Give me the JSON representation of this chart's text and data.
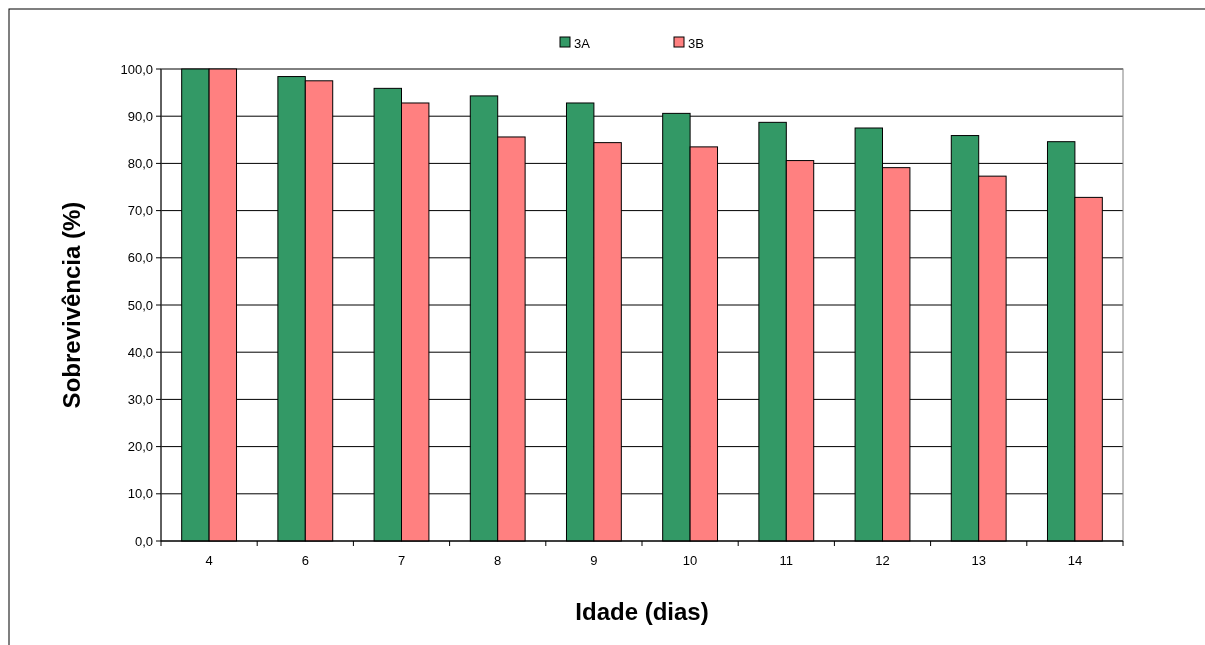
{
  "chart_data": {
    "type": "bar",
    "xlabel": "Idade (dias)",
    "ylabel": "Sobrevivência (%)",
    "categories": [
      "4",
      "6",
      "7",
      "8",
      "9",
      "10",
      "11",
      "12",
      "13",
      "14"
    ],
    "series": [
      {
        "name": "3A",
        "color": "#339966",
        "values": [
          100.0,
          98.4,
          95.9,
          94.3,
          92.8,
          90.6,
          88.7,
          87.5,
          85.9,
          84.6
        ]
      },
      {
        "name": "3B",
        "color": "#ff8080",
        "values": [
          100.0,
          97.5,
          92.8,
          85.6,
          84.4,
          83.5,
          80.6,
          79.1,
          77.3,
          72.8
        ]
      }
    ],
    "ylim": [
      0,
      100
    ],
    "yticks": [
      {
        "value": 0,
        "label": "0,0"
      },
      {
        "value": 10,
        "label": "10,0"
      },
      {
        "value": 20,
        "label": "20,0"
      },
      {
        "value": 30,
        "label": "30,0"
      },
      {
        "value": 40,
        "label": "40,0"
      },
      {
        "value": 50,
        "label": "50,0"
      },
      {
        "value": 60,
        "label": "60,0"
      },
      {
        "value": 70,
        "label": "70,0"
      },
      {
        "value": 80,
        "label": "80,0"
      },
      {
        "value": 90,
        "label": "90,0"
      },
      {
        "value": 100,
        "label": "100,0"
      }
    ],
    "grid": "y",
    "legend": "top"
  }
}
